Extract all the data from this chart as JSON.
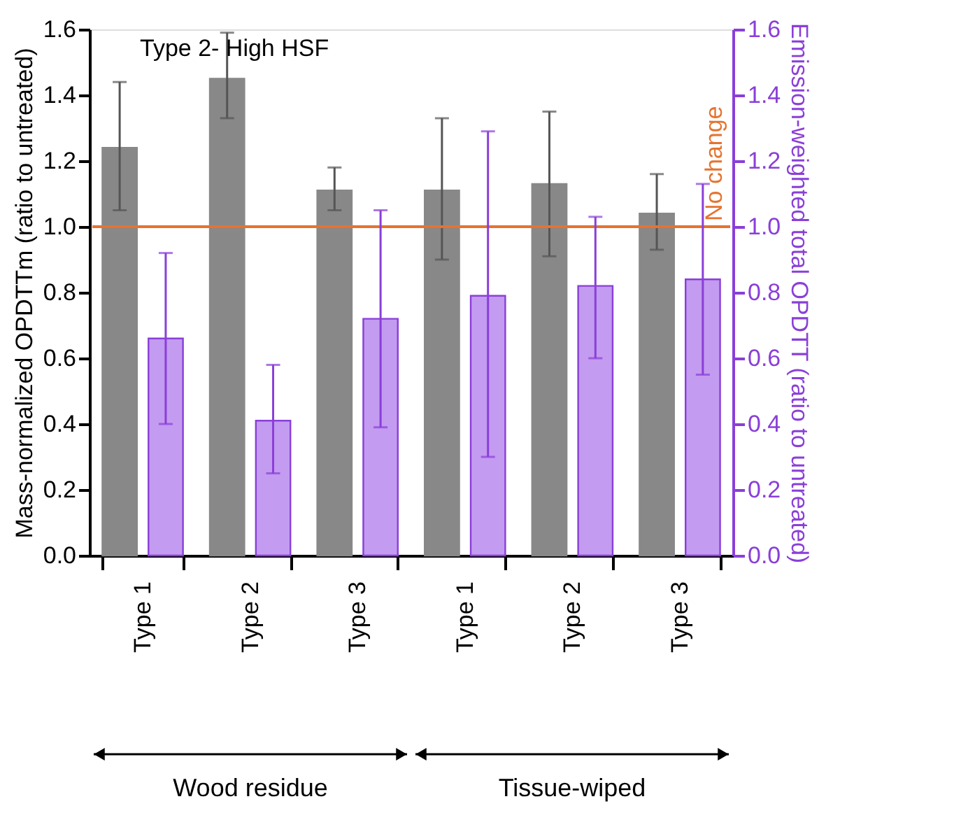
{
  "chart_data": {
    "type": "bar",
    "categories": [
      "Type 1",
      "Type 2",
      "Type 3",
      "Type 1",
      "Type 2",
      "Type 3"
    ],
    "series": [
      {
        "color": "#888888",
        "values": [
          1.24,
          1.45,
          1.11,
          1.11,
          1.13,
          1.04
        ],
        "errors": [
          [
            1.05,
            1.44
          ],
          [
            1.33,
            1.59
          ],
          [
            1.05,
            1.18
          ],
          [
            0.9,
            1.33
          ],
          [
            0.91,
            1.35
          ],
          [
            0.93,
            1.16
          ]
        ]
      },
      {
        "color": "#c39bf0",
        "axis": "y2",
        "values": [
          0.66,
          0.41,
          0.72,
          0.79,
          0.82,
          0.84
        ],
        "errors": [
          [
            0.4,
            0.92
          ],
          [
            0.25,
            0.58
          ],
          [
            0.39,
            1.05
          ],
          [
            0.3,
            1.29
          ],
          [
            0.6,
            1.03
          ],
          [
            0.55,
            1.13
          ]
        ]
      }
    ],
    "ylabel": "Mass-normalized OPDTTm (ratio to untreated)",
    "y2label": "Emission-weighted total OPDTT (ratio to untreated)",
    "ylim": [
      0,
      1.6
    ],
    "yticks": [
      {
        "value": 0,
        "label": "0.0"
      },
      0.2,
      0.4,
      0.6,
      0.8,
      {
        "value": 1,
        "label": "1.0"
      },
      1.2,
      1.4,
      1.6
    ],
    "y2lim": [
      0,
      1.6
    ],
    "y2ticks": [
      {
        "value": 0,
        "label": "0.0"
      },
      0.2,
      0.4,
      0.6,
      0.8,
      {
        "value": 1,
        "label": "1.0"
      },
      1.2,
      1.4,
      1.6
    ],
    "ref_lines": [
      {
        "axis": "y",
        "value": 1.0,
        "label": "No change",
        "color": "#e5732f"
      }
    ],
    "annotations": [
      "Type 2- High HSF",
      "Wood residue",
      "Tissue-wiped"
    ],
    "grid": false
  }
}
